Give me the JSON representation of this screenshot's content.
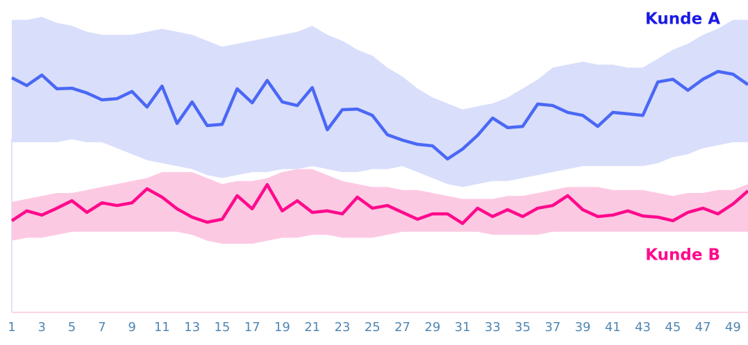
{
  "chart_data": {
    "type": "line",
    "x": [
      1,
      2,
      3,
      4,
      5,
      6,
      7,
      8,
      9,
      10,
      11,
      12,
      13,
      14,
      15,
      16,
      17,
      18,
      19,
      20,
      21,
      22,
      23,
      24,
      25,
      26,
      27,
      28,
      29,
      30,
      31,
      32,
      33,
      34,
      35,
      36,
      37,
      38,
      39,
      40,
      41,
      42,
      43,
      44,
      45,
      46,
      47,
      48,
      49,
      50
    ],
    "xlim": [
      1,
      50
    ],
    "xticks": [
      1,
      3,
      5,
      7,
      9,
      11,
      13,
      15,
      17,
      19,
      21,
      23,
      25,
      27,
      29,
      31,
      33,
      35,
      37,
      39,
      41,
      43,
      45,
      47,
      49
    ],
    "ylim": [
      0,
      100
    ],
    "series": [
      {
        "name": "Kunde A",
        "color": "#4a68f5",
        "band_color": "#d9defb",
        "values": [
          78.6,
          76.0,
          79.5,
          74.9,
          75.1,
          73.5,
          71.2,
          71.6,
          74.0,
          68.8,
          75.8,
          63.3,
          70.5,
          62.6,
          63.0,
          74.9,
          70.2,
          77.7,
          70.5,
          69.3,
          75.3,
          61.2,
          67.9,
          68.1,
          66.0,
          59.5,
          57.7,
          56.3,
          55.8,
          51.4,
          54.7,
          59.3,
          65.1,
          61.9,
          62.3,
          69.8,
          69.3,
          67.0,
          66.0,
          62.3,
          67.0,
          66.5,
          66.0,
          77.2,
          78.1,
          74.4,
          78.1,
          80.7,
          79.8,
          76.3
        ],
        "band_upper": [
          98,
          98,
          99,
          97,
          96,
          94,
          93,
          93,
          93,
          94,
          95,
          94,
          93,
          91,
          89,
          90,
          91,
          92,
          93,
          94,
          96,
          93,
          91,
          88,
          86,
          82,
          79,
          75,
          72,
          70,
          68,
          69,
          70,
          72,
          75,
          78,
          82,
          83,
          84,
          83,
          83,
          82,
          82,
          85,
          88,
          90,
          93,
          95,
          98,
          98
        ],
        "band_lower": [
          57,
          57,
          57,
          57,
          58,
          57,
          57,
          55,
          53,
          51,
          50,
          49,
          48,
          46,
          45,
          46,
          47,
          47,
          48,
          48,
          49,
          48,
          47,
          47,
          48,
          48,
          49,
          47,
          45,
          43,
          42,
          43,
          44,
          44,
          45,
          46,
          47,
          48,
          49,
          49,
          49,
          49,
          49,
          50,
          52,
          53,
          55,
          56,
          57,
          57
        ]
      },
      {
        "name": "Kunde B",
        "color": "#ff0a8c",
        "band_color": "#fcc9e3",
        "values": [
          30.7,
          34.0,
          32.6,
          34.9,
          37.4,
          33.5,
          36.7,
          35.8,
          36.7,
          41.4,
          38.6,
          34.7,
          31.9,
          30.2,
          31.2,
          39.1,
          34.7,
          42.8,
          34.0,
          37.4,
          33.5,
          34.0,
          33.0,
          38.6,
          34.9,
          35.8,
          33.5,
          31.2,
          33.0,
          33.0,
          29.8,
          34.9,
          32.1,
          34.4,
          32.1,
          34.9,
          35.8,
          39.1,
          34.4,
          32.1,
          32.6,
          34.0,
          32.3,
          31.9,
          30.7,
          33.5,
          34.9,
          33.0,
          36.3,
          40.7
        ],
        "band_upper": [
          37,
          38,
          39,
          40,
          40,
          41,
          42,
          43,
          44,
          45,
          47,
          47,
          47,
          45,
          43,
          44,
          44,
          45,
          47,
          48,
          48,
          46,
          44,
          43,
          42,
          42,
          41,
          41,
          40,
          39,
          38,
          38,
          38,
          39,
          39,
          40,
          41,
          42,
          42,
          42,
          41,
          41,
          41,
          40,
          39,
          40,
          40,
          41,
          41,
          43
        ],
        "band_lower": [
          24,
          25,
          25,
          26,
          27,
          27,
          27,
          27,
          27,
          27,
          27,
          27,
          26,
          24,
          23,
          23,
          23,
          24,
          25,
          25,
          26,
          26,
          25,
          25,
          25,
          26,
          27,
          27,
          27,
          27,
          27,
          27,
          26,
          26,
          26,
          26,
          27,
          27,
          27,
          27,
          27,
          27,
          27,
          27,
          27,
          27,
          27,
          27,
          27,
          27
        ]
      }
    ]
  }
}
